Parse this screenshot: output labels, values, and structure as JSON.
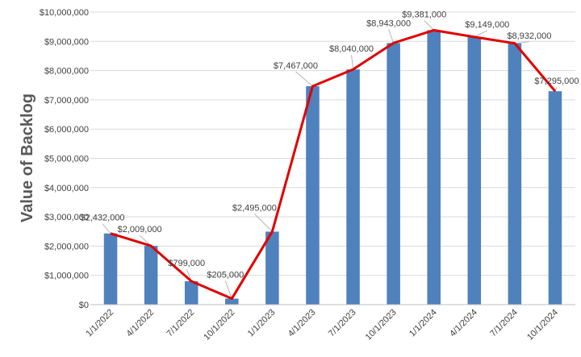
{
  "chart_data": {
    "type": "bar",
    "title": "",
    "xlabel": "",
    "ylabel": "Value of Backlog",
    "ylim": [
      0,
      10000000
    ],
    "ytick_step": 1000000,
    "ytick_labels": [
      "$0",
      "$1,000,000",
      "$2,000,000",
      "$3,000,000",
      "$4,000,000",
      "$5,000,000",
      "$6,000,000",
      "$7,000,000",
      "$8,000,000",
      "$9,000,000",
      "$10,000,000"
    ],
    "categories": [
      "1/1/2022",
      "4/1/2022",
      "7/1/2022",
      "10/1/2022",
      "1/1/2023",
      "4/1/2023",
      "7/1/2023",
      "10/1/2023",
      "1/1/2024",
      "4/1/2024",
      "7/1/2024",
      "10/1/2024"
    ],
    "values": [
      2432000,
      2009000,
      799000,
      205000,
      2495000,
      7467000,
      8040000,
      8943000,
      9381000,
      9149000,
      8932000,
      7295000
    ],
    "data_labels": [
      "$2,432,000",
      "$2,009,000",
      "$799,000",
      "$205,000",
      "$2,495,000",
      "$7,467,000",
      "$8,040,000",
      "$8,943,000",
      "$9,381,000",
      "$9,149,000",
      "$8,932,000",
      "$7,295,000"
    ],
    "overlay": {
      "type": "line",
      "values": [
        2432000,
        2009000,
        799000,
        205000,
        2495000,
        7467000,
        8040000,
        8943000,
        9381000,
        9149000,
        8932000,
        7295000
      ]
    },
    "bar_color": "#4f81bd",
    "line_color": "#e00000",
    "grid": true
  }
}
